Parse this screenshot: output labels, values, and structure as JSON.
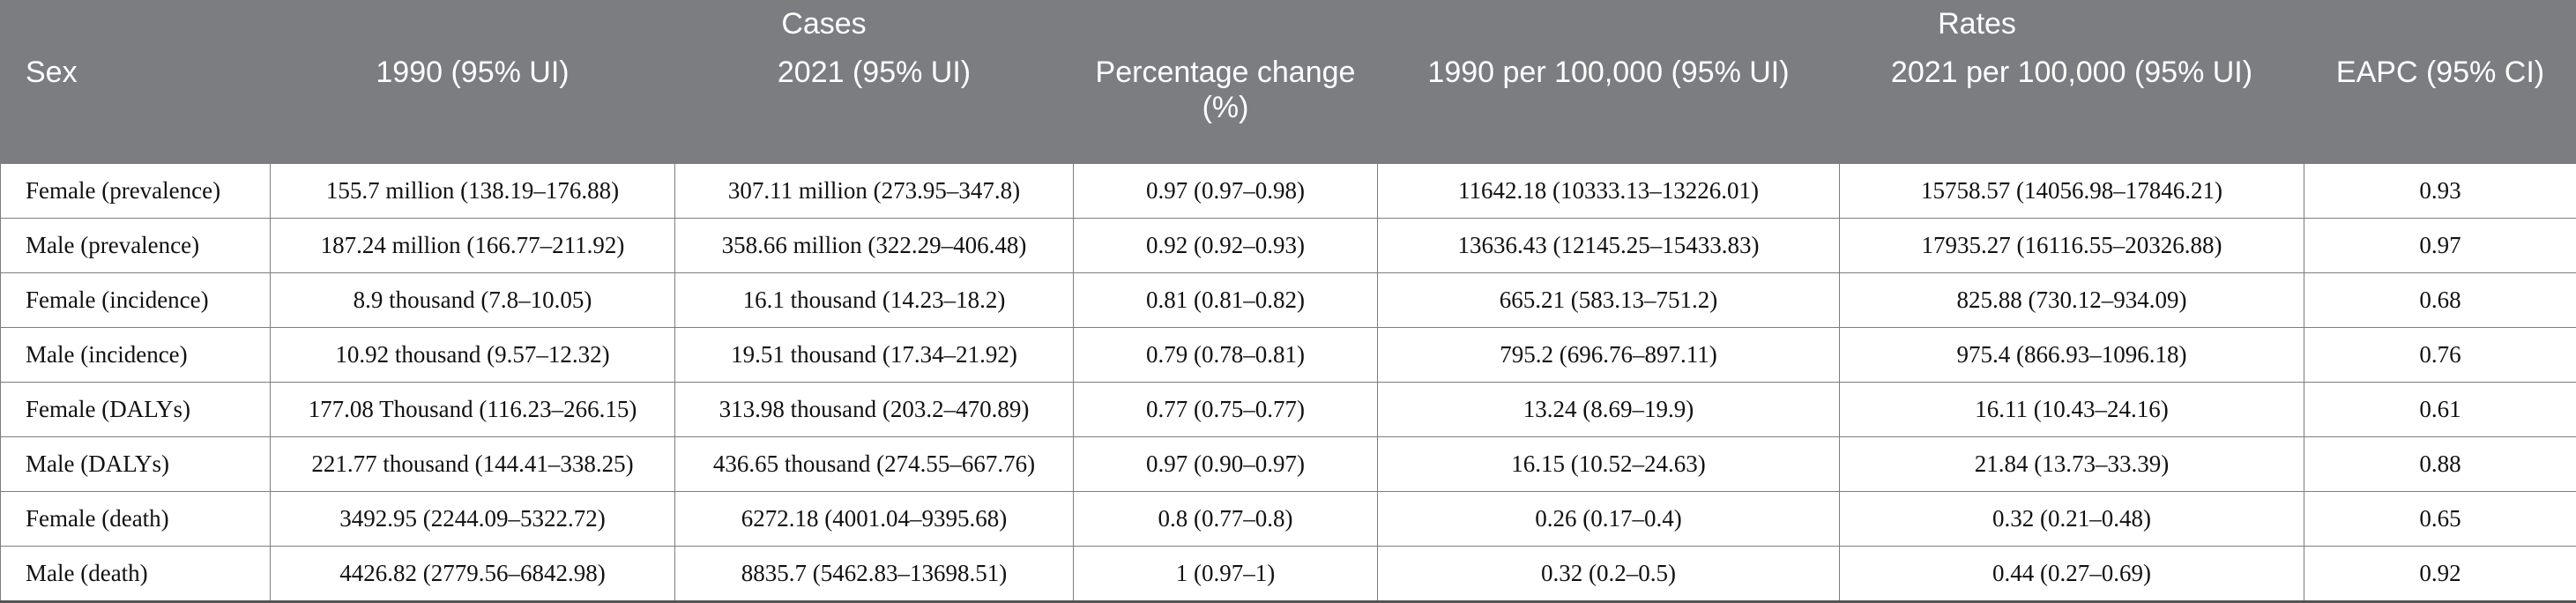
{
  "header": {
    "groups": {
      "cases": "Cases",
      "rates": "Rates"
    },
    "columns": [
      "Sex",
      "1990 (95% UI)",
      "2021 (95% UI)",
      "Percentage change (%)",
      "1990 per 100,000 (95% UI)",
      "2021 per 100,000 (95% UI)",
      "EAPC (95% CI)"
    ]
  },
  "rows": [
    [
      "Female (prevalence)",
      "155.7 million (138.19–176.88)",
      "307.11 million (273.95–347.8)",
      "0.97 (0.97–0.98)",
      "11642.18 (10333.13–13226.01)",
      "15758.57 (14056.98–17846.21)",
      "0.93"
    ],
    [
      "Male (prevalence)",
      "187.24 million (166.77–211.92)",
      "358.66 million (322.29–406.48)",
      "0.92 (0.92–0.93)",
      "13636.43 (12145.25–15433.83)",
      "17935.27 (16116.55–20326.88)",
      "0.97"
    ],
    [
      "Female (incidence)",
      "8.9 thousand (7.8–10.05)",
      "16.1 thousand (14.23–18.2)",
      "0.81 (0.81–0.82)",
      "665.21 (583.13–751.2)",
      "825.88 (730.12–934.09)",
      "0.68"
    ],
    [
      "Male (incidence)",
      "10.92 thousand (9.57–12.32)",
      "19.51 thousand (17.34–21.92)",
      "0.79 (0.78–0.81)",
      "795.2 (696.76–897.11)",
      "975.4 (866.93–1096.18)",
      "0.76"
    ],
    [
      "Female (DALYs)",
      "177.08 Thousand (116.23–266.15)",
      "313.98 thousand (203.2–470.89)",
      "0.77 (0.75–0.77)",
      "13.24 (8.69–19.9)",
      "16.11 (10.43–24.16)",
      "0.61"
    ],
    [
      "Male (DALYs)",
      "221.77 thousand (144.41–338.25)",
      "436.65 thousand (274.55–667.76)",
      "0.97 (0.90–0.97)",
      "16.15 (10.52–24.63)",
      "21.84 (13.73–33.39)",
      "0.88"
    ],
    [
      "Female (death)",
      "3492.95 (2244.09–5322.72)",
      "6272.18 (4001.04–9395.68)",
      "0.8 (0.77–0.8)",
      "0.26 (0.17–0.4)",
      "0.32 (0.21–0.48)",
      "0.65"
    ],
    [
      "Male (death)",
      "4426.82 (2779.56–6842.98)",
      "8835.7 (5462.83–13698.51)",
      "1 (0.97–1)",
      "0.32 (0.2–0.5)",
      "0.44 (0.27–0.69)",
      "0.92"
    ]
  ]
}
